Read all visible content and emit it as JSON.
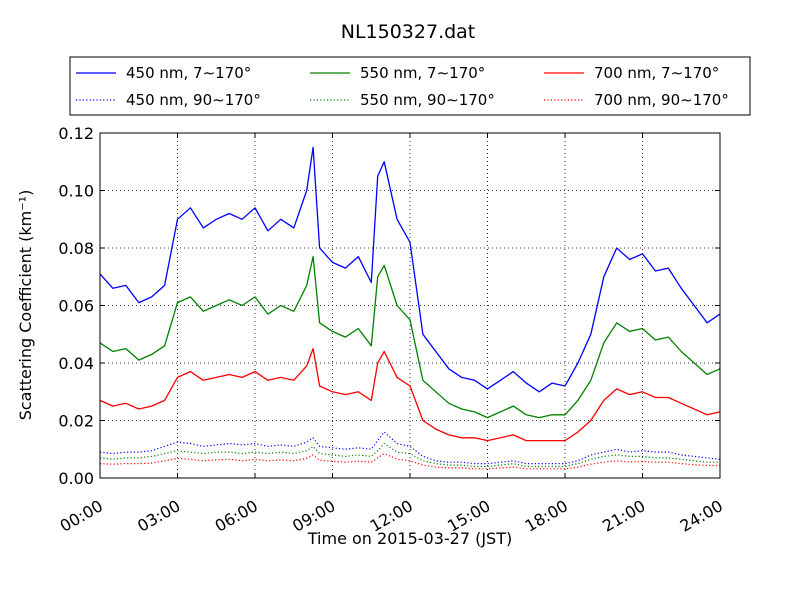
{
  "chart_data": {
    "type": "line",
    "title": "NL150327.dat",
    "xlabel": "Time on 2015-03-27 (JST)",
    "ylabel": "Scattering Coefficient (km⁻¹)",
    "x_unit": "hours",
    "xlim": [
      0,
      24
    ],
    "ylim": [
      0,
      0.12
    ],
    "grid": true,
    "legend_position": "top (above plot)",
    "x_tick_labels": [
      "00:00",
      "03:00",
      "06:00",
      "09:00",
      "12:00",
      "15:00",
      "18:00",
      "21:00",
      "24:00"
    ],
    "y_tick_labels": [
      "0.00",
      "0.02",
      "0.04",
      "0.06",
      "0.08",
      "0.10",
      "0.12"
    ],
    "x": [
      0,
      0.5,
      1,
      1.5,
      2,
      2.5,
      3,
      3.5,
      4,
      4.5,
      5,
      5.5,
      6,
      6.5,
      7,
      7.5,
      8,
      8.25,
      8.5,
      9,
      9.5,
      10,
      10.5,
      10.75,
      11,
      11.5,
      12,
      12.5,
      13,
      13.5,
      14,
      14.5,
      15,
      15.5,
      16,
      16.5,
      17,
      17.5,
      18,
      18.5,
      19,
      19.5,
      20,
      20.5,
      21,
      21.5,
      22,
      22.5,
      23,
      23.5,
      24
    ],
    "series": [
      {
        "name": "450 nm, 7∼170°",
        "color": "#0000ff",
        "style": "solid",
        "values": [
          0.071,
          0.066,
          0.067,
          0.061,
          0.063,
          0.067,
          0.09,
          0.094,
          0.087,
          0.09,
          0.092,
          0.09,
          0.094,
          0.086,
          0.09,
          0.087,
          0.1,
          0.115,
          0.08,
          0.075,
          0.073,
          0.077,
          0.068,
          0.105,
          0.11,
          0.09,
          0.082,
          0.05,
          0.044,
          0.038,
          0.035,
          0.034,
          0.031,
          0.034,
          0.037,
          0.033,
          0.03,
          0.033,
          0.032,
          0.04,
          0.05,
          0.07,
          0.08,
          0.076,
          0.078,
          0.072,
          0.073,
          0.066,
          0.06,
          0.054,
          0.057
        ]
      },
      {
        "name": "450 nm, 90∼170°",
        "color": "#0000ff",
        "style": "dotted",
        "values": [
          0.009,
          0.0085,
          0.009,
          0.009,
          0.0095,
          0.011,
          0.0125,
          0.012,
          0.011,
          0.0115,
          0.012,
          0.0115,
          0.012,
          0.011,
          0.0115,
          0.011,
          0.0125,
          0.014,
          0.011,
          0.0105,
          0.01,
          0.0105,
          0.01,
          0.013,
          0.016,
          0.012,
          0.011,
          0.0075,
          0.006,
          0.0055,
          0.0055,
          0.005,
          0.005,
          0.0055,
          0.006,
          0.005,
          0.005,
          0.005,
          0.005,
          0.006,
          0.008,
          0.009,
          0.01,
          0.009,
          0.0095,
          0.009,
          0.009,
          0.008,
          0.0075,
          0.007,
          0.0065
        ]
      },
      {
        "name": "550 nm, 7∼170°",
        "color": "#008000",
        "style": "solid",
        "values": [
          0.047,
          0.044,
          0.045,
          0.041,
          0.043,
          0.046,
          0.061,
          0.063,
          0.058,
          0.06,
          0.062,
          0.06,
          0.063,
          0.057,
          0.06,
          0.058,
          0.067,
          0.077,
          0.054,
          0.051,
          0.049,
          0.052,
          0.046,
          0.07,
          0.074,
          0.06,
          0.055,
          0.034,
          0.03,
          0.026,
          0.024,
          0.023,
          0.021,
          0.023,
          0.025,
          0.022,
          0.021,
          0.022,
          0.022,
          0.027,
          0.034,
          0.047,
          0.054,
          0.051,
          0.052,
          0.048,
          0.049,
          0.044,
          0.04,
          0.036,
          0.038
        ]
      },
      {
        "name": "550 nm, 90∼170°",
        "color": "#008000",
        "style": "dotted",
        "values": [
          0.007,
          0.0065,
          0.007,
          0.007,
          0.0075,
          0.0085,
          0.0095,
          0.009,
          0.0085,
          0.009,
          0.009,
          0.0085,
          0.009,
          0.0085,
          0.009,
          0.0085,
          0.0095,
          0.011,
          0.0085,
          0.008,
          0.0075,
          0.008,
          0.0075,
          0.0095,
          0.012,
          0.009,
          0.0085,
          0.006,
          0.005,
          0.0045,
          0.0045,
          0.004,
          0.004,
          0.0045,
          0.005,
          0.004,
          0.004,
          0.004,
          0.004,
          0.005,
          0.0065,
          0.0075,
          0.008,
          0.0075,
          0.0075,
          0.007,
          0.007,
          0.0065,
          0.006,
          0.0055,
          0.0055
        ]
      },
      {
        "name": "700 nm, 7∼170°",
        "color": "#ff0000",
        "style": "solid",
        "values": [
          0.027,
          0.025,
          0.026,
          0.024,
          0.025,
          0.027,
          0.035,
          0.037,
          0.034,
          0.035,
          0.036,
          0.035,
          0.037,
          0.034,
          0.035,
          0.034,
          0.039,
          0.045,
          0.032,
          0.03,
          0.029,
          0.03,
          0.027,
          0.04,
          0.044,
          0.035,
          0.032,
          0.02,
          0.017,
          0.015,
          0.014,
          0.014,
          0.013,
          0.014,
          0.015,
          0.013,
          0.013,
          0.013,
          0.013,
          0.016,
          0.02,
          0.027,
          0.031,
          0.029,
          0.03,
          0.028,
          0.028,
          0.026,
          0.024,
          0.022,
          0.023
        ]
      },
      {
        "name": "700 nm, 90∼170°",
        "color": "#ff0000",
        "style": "dotted",
        "values": [
          0.005,
          0.0048,
          0.005,
          0.005,
          0.0052,
          0.006,
          0.0068,
          0.0065,
          0.006,
          0.0063,
          0.0065,
          0.006,
          0.0065,
          0.006,
          0.0063,
          0.006,
          0.0068,
          0.008,
          0.0062,
          0.0058,
          0.0055,
          0.0058,
          0.0055,
          0.007,
          0.0085,
          0.0065,
          0.006,
          0.0045,
          0.0038,
          0.0035,
          0.0035,
          0.0032,
          0.0032,
          0.0035,
          0.0038,
          0.0032,
          0.0032,
          0.0032,
          0.0032,
          0.0038,
          0.0048,
          0.0055,
          0.006,
          0.0056,
          0.0057,
          0.0055,
          0.0055,
          0.005,
          0.0046,
          0.0044,
          0.0043
        ]
      }
    ]
  }
}
